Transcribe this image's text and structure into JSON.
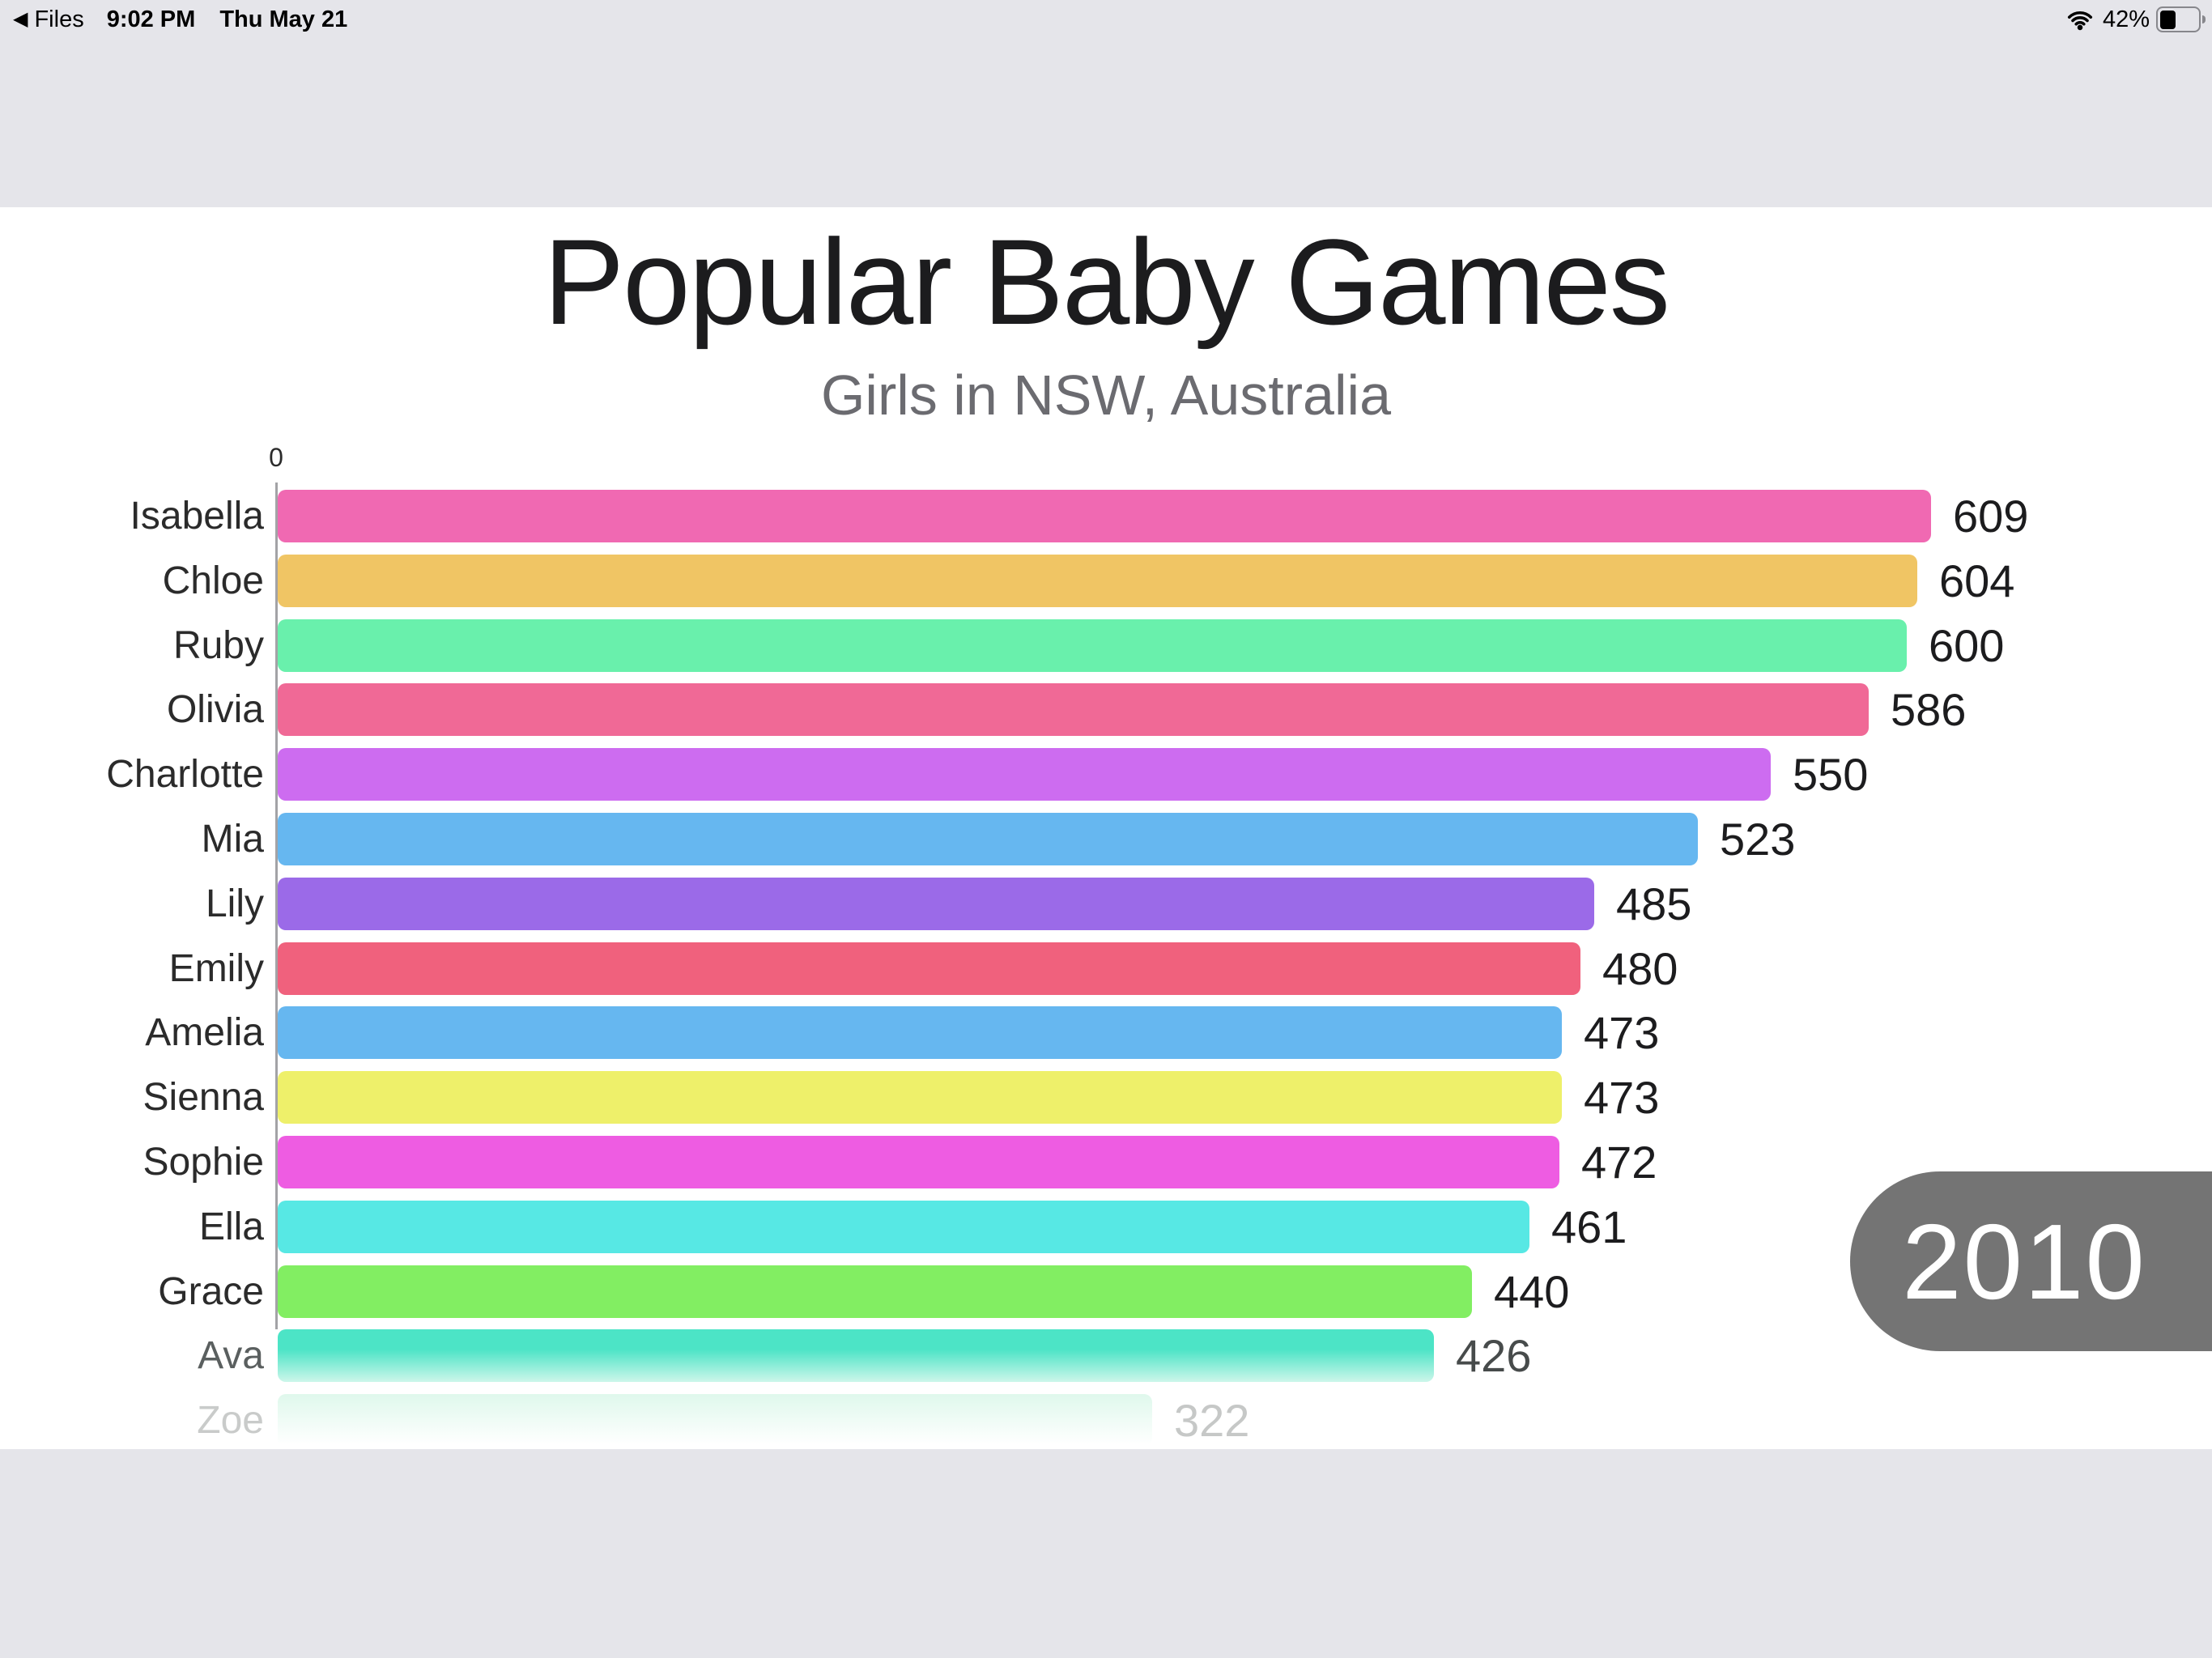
{
  "status_bar": {
    "back_app": {
      "icon": "back-triangle-icon",
      "label": "Files"
    },
    "time": "9:02 PM",
    "date": "Thu May 21",
    "wifi_icon": "wifi-icon",
    "battery": {
      "percent_label": "42%",
      "level": 0.42
    }
  },
  "chart_data": {
    "type": "bar",
    "orientation": "horizontal",
    "title": "Popular Baby Games",
    "subtitle": "Girls in NSW, Australia",
    "x_axis": {
      "origin_tick_label": "0"
    },
    "year_badge": "2010",
    "categories": [
      "Isabella",
      "Chloe",
      "Ruby",
      "Olivia",
      "Charlotte",
      "Mia",
      "Lily",
      "Emily",
      "Amelia",
      "Sienna",
      "Sophie",
      "Ella",
      "Grace",
      "Ava",
      "Zoe"
    ],
    "values": [
      609,
      604,
      600,
      586,
      550,
      523,
      485,
      480,
      473,
      473,
      472,
      461,
      440,
      426,
      322
    ],
    "bars": [
      {
        "name": "Isabella",
        "value": 609,
        "color": "#f069b2",
        "fade": 0
      },
      {
        "name": "Chloe",
        "value": 604,
        "color": "#f0c564",
        "fade": 0
      },
      {
        "name": "Ruby",
        "value": 600,
        "color": "#69f0ac",
        "fade": 0
      },
      {
        "name": "Olivia",
        "value": 586,
        "color": "#f06996",
        "fade": 0
      },
      {
        "name": "Charlotte",
        "value": 550,
        "color": "#cd6cf0",
        "fade": 0
      },
      {
        "name": "Mia",
        "value": 523,
        "color": "#66b7f0",
        "fade": 0
      },
      {
        "name": "Lily",
        "value": 485,
        "color": "#9b6ae8",
        "fade": 0
      },
      {
        "name": "Emily",
        "value": 480,
        "color": "#f0617d",
        "fade": 0
      },
      {
        "name": "Amelia",
        "value": 473,
        "color": "#66b7f0",
        "fade": 0
      },
      {
        "name": "Sienna",
        "value": 473,
        "color": "#eef06a",
        "fade": 0
      },
      {
        "name": "Sophie",
        "value": 472,
        "color": "#ee5ce2",
        "fade": 0
      },
      {
        "name": "Ella",
        "value": 461,
        "color": "#57e8e4",
        "fade": 0
      },
      {
        "name": "Grace",
        "value": 440,
        "color": "#82ee62",
        "fade": 0
      },
      {
        "name": "Ava",
        "value": 426,
        "color": "#4ce4c6",
        "fade": 1
      },
      {
        "name": "Zoe",
        "value": 322,
        "color": "#dff8ec",
        "fade": 2
      }
    ],
    "colors": {
      "badge_background": "#747474",
      "badge_text": "#ffffff",
      "status_band_background": "#e5e5ea",
      "subtitle_text": "#6b6b70",
      "axis_line": "#a3a3a6"
    }
  }
}
